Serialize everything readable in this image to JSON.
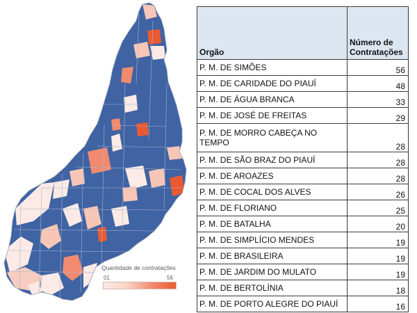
{
  "map": {
    "legend_title": "Quantidade de contratações",
    "legend_min": "01",
    "legend_max": "56",
    "colors": {
      "no_data": "#3f63a3",
      "low": "#fbeae5",
      "mid_low": "#f8c6b6",
      "mid": "#f28a6f",
      "high": "#ea5a32",
      "border": "#a8b6cf"
    }
  },
  "table": {
    "header_orgao": "Orgão",
    "header_numero_line1": "Número de",
    "header_numero_line2": "Contratações",
    "rows": [
      {
        "org": "P. M. DE SIMÕES",
        "value": "56"
      },
      {
        "org": "P. M. DE CARIDADE DO PIAUÍ",
        "value": "48"
      },
      {
        "org": "P. M. DE ÁGUA BRANCA",
        "value": "33"
      },
      {
        "org": "P. M. DE JOSÉ DE FREITAS",
        "value": "29"
      },
      {
        "org": "P. M. DE MORRO CABEÇA NO TEMPO",
        "value": "28",
        "line1": "P. M. DE MORRO CABEÇA NO",
        "line2": "TEMPO"
      },
      {
        "org": "P. M. DE SÃO BRAZ DO PIAUÍ",
        "value": "28"
      },
      {
        "org": "P. M. DE AROAZES",
        "value": "28"
      },
      {
        "org": "P. M. DE COCAL DOS ALVES",
        "value": "26"
      },
      {
        "org": "P. M. DE FLORIANO",
        "value": "25"
      },
      {
        "org": "P. M. DE BATALHA",
        "value": "20"
      },
      {
        "org": "P. M. DE SIMPLÍCIO MENDES",
        "value": "19"
      },
      {
        "org": "P. M. DE BRASILEIRA",
        "value": "19"
      },
      {
        "org": "P. M. DE JARDIM DO MULATO",
        "value": "19"
      },
      {
        "org": "P. M. DE BERTOLÍNIA",
        "value": "18"
      },
      {
        "org": "P. M. DE PORTO ALEGRE DO PIAUÍ",
        "value": "16"
      }
    ]
  }
}
